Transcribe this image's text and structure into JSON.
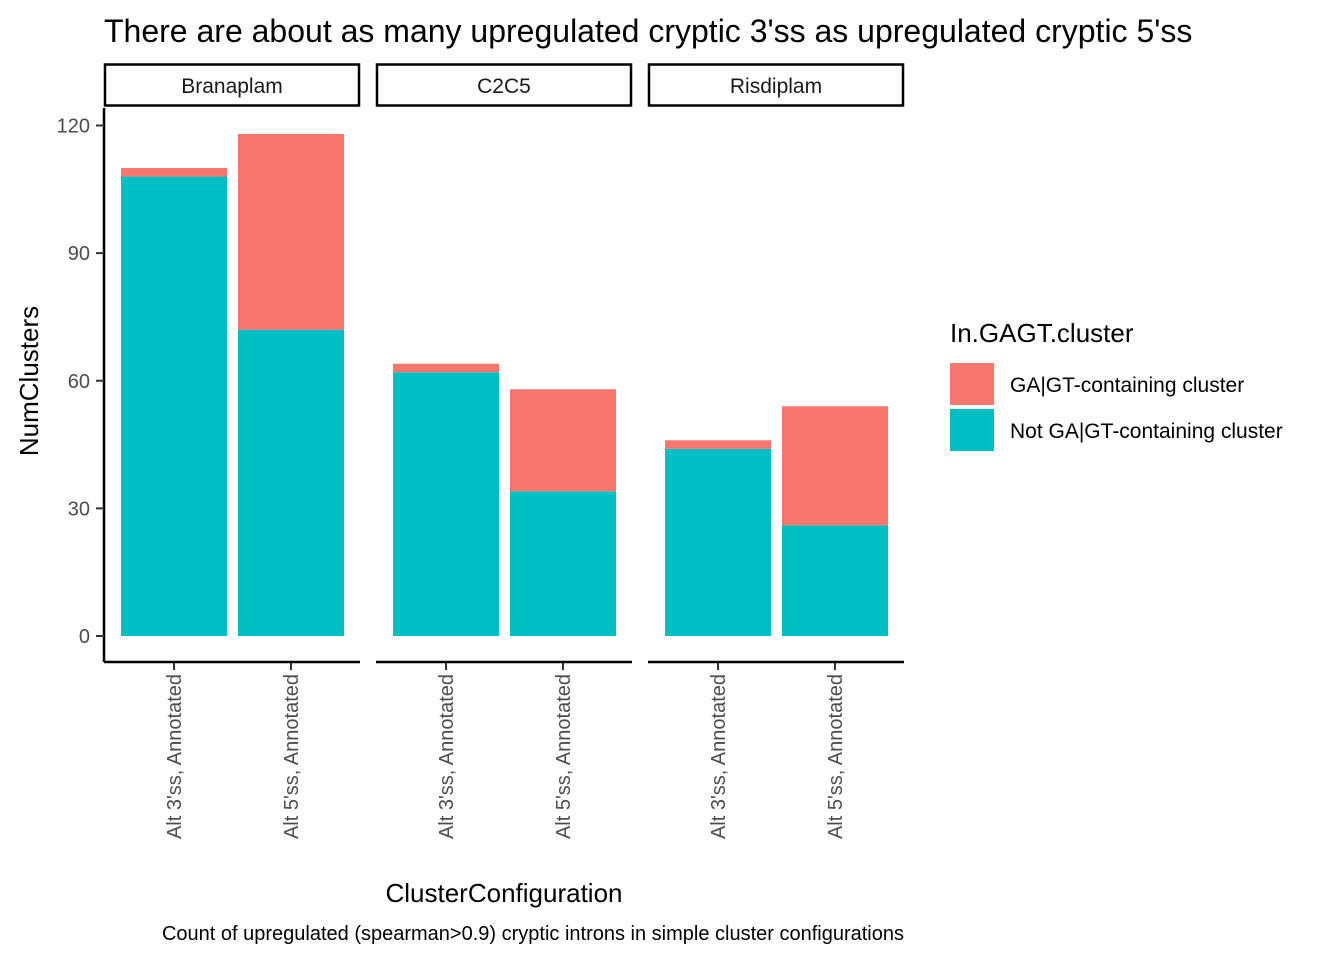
{
  "chart_data": {
    "type": "bar",
    "stacked": true,
    "title": "There are about as many upregulated cryptic 3'ss as upregulated cryptic 5'ss",
    "xlabel": "ClusterConfiguration",
    "ylabel": "NumClusters",
    "caption": "Count of upregulated (spearman>0.9) cryptic introns in simple cluster configurations",
    "ylim": [
      0,
      120
    ],
    "yticks": [
      0,
      30,
      60,
      90,
      120
    ],
    "categories": [
      "Alt 3'ss, Annotated",
      "Alt 5'ss, Annotated"
    ],
    "legend": {
      "title": "In.GAGT.cluster",
      "position": "right",
      "entries": [
        "GA|GT-containing cluster",
        "Not GA|GT-containing cluster"
      ]
    },
    "series_colors": {
      "GA|GT-containing cluster": "#F8766D",
      "Not GA|GT-containing cluster": "#00BFC4"
    },
    "facets": [
      {
        "label": "Branaplam",
        "series": [
          {
            "name": "Not GA|GT-containing cluster",
            "values": [
              108,
              72
            ]
          },
          {
            "name": "GA|GT-containing cluster",
            "values": [
              2,
              46
            ]
          }
        ]
      },
      {
        "label": "C2C5",
        "series": [
          {
            "name": "Not GA|GT-containing cluster",
            "values": [
              62,
              34
            ]
          },
          {
            "name": "GA|GT-containing cluster",
            "values": [
              2,
              24
            ]
          }
        ]
      },
      {
        "label": "Risdiplam",
        "series": [
          {
            "name": "Not GA|GT-containing cluster",
            "values": [
              44,
              26
            ]
          },
          {
            "name": "GA|GT-containing cluster",
            "values": [
              2,
              28
            ]
          }
        ]
      }
    ]
  }
}
